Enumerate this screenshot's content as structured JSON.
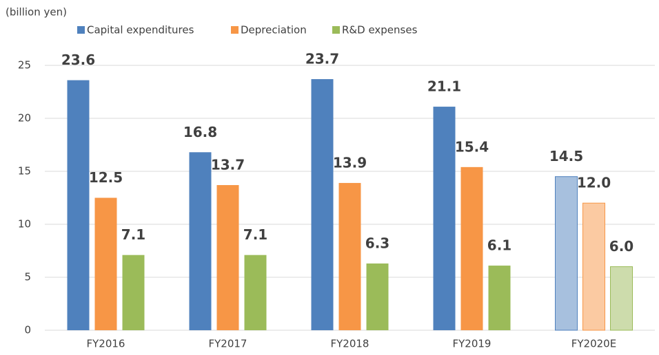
{
  "chart_data": {
    "type": "bar",
    "unit_label": "(billion yen)",
    "categories": [
      "FY2016",
      "FY2017",
      "FY2018",
      "FY2019",
      "FY2020E"
    ],
    "series": [
      {
        "name": "Capital expenditures",
        "color": "#4f81bd",
        "colors": [
          "#4f81bd",
          "#4f81bd",
          "#4f81bd",
          "#4f81bd",
          "#a7c0de"
        ],
        "values": [
          23.6,
          16.8,
          23.7,
          21.1,
          14.5
        ]
      },
      {
        "name": "Depreciation",
        "color": "#f79646",
        "colors": [
          "#f79646",
          "#f79646",
          "#f79646",
          "#f79646",
          "#fbcaa2"
        ],
        "values": [
          12.5,
          13.7,
          13.9,
          15.4,
          12.0
        ],
        "value_labels": [
          "12.5",
          "13.7",
          "13.9",
          "15.4",
          "12.0"
        ]
      },
      {
        "name": "R&D expenses",
        "color": "#9bbb59",
        "colors": [
          "#9bbb59",
          "#9bbb59",
          "#9bbb59",
          "#9bbb59",
          "#cddcac"
        ],
        "values": [
          7.1,
          7.1,
          6.3,
          6.1,
          6.0
        ],
        "value_labels": [
          "7.1",
          "7.1",
          "6.3",
          "6.1",
          "6.0"
        ]
      }
    ],
    "ylim": [
      0,
      25
    ],
    "yticks": [
      0,
      5,
      10,
      15,
      20,
      25
    ],
    "grid": true,
    "legend": "top"
  }
}
